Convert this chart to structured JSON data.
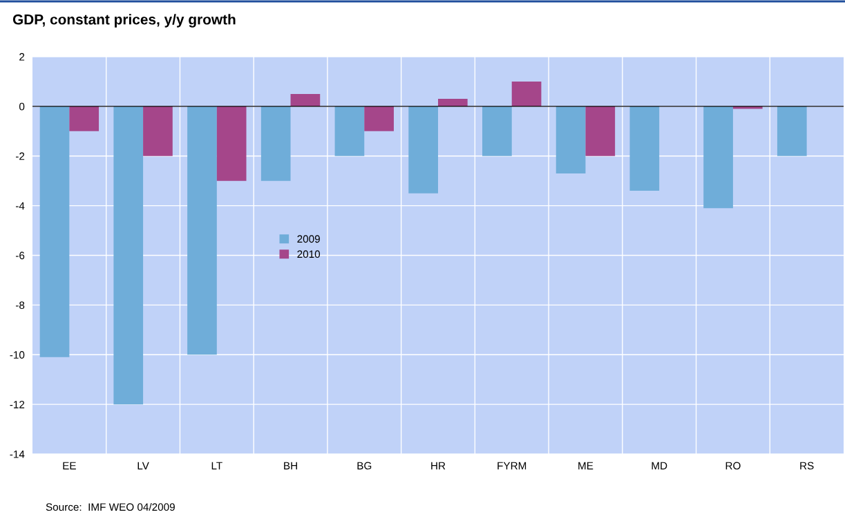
{
  "chart_data": {
    "type": "bar",
    "title": "GDP, constant prices, y/y growth",
    "categories": [
      "EE",
      "LV",
      "LT",
      "BH",
      "BG",
      "HR",
      "FYRM",
      "ME",
      "MD",
      "RO",
      "RS"
    ],
    "series": [
      {
        "name": "2009",
        "color": "#6fadd9",
        "values": [
          -10.1,
          -12.0,
          -10.0,
          -3.0,
          -2.0,
          -3.5,
          -2.0,
          -2.7,
          -3.4,
          -4.1,
          -2.0
        ]
      },
      {
        "name": "2010",
        "color": "#a5468a",
        "values": [
          -1.0,
          -2.0,
          -3.0,
          0.5,
          -1.0,
          0.3,
          1.0,
          -2.0,
          null,
          -0.1,
          null
        ]
      }
    ],
    "ylim": [
      -14,
      2
    ],
    "yticks": [
      -14,
      -12,
      -10,
      -8,
      -6,
      -4,
      -2,
      0,
      2
    ],
    "grid": true,
    "legend": "center",
    "ref_lines": [
      {
        "axis": "y",
        "value": 0,
        "color": "#000000"
      }
    ],
    "annotations": [
      "Source:  IMF WEO 04/2009"
    ]
  }
}
